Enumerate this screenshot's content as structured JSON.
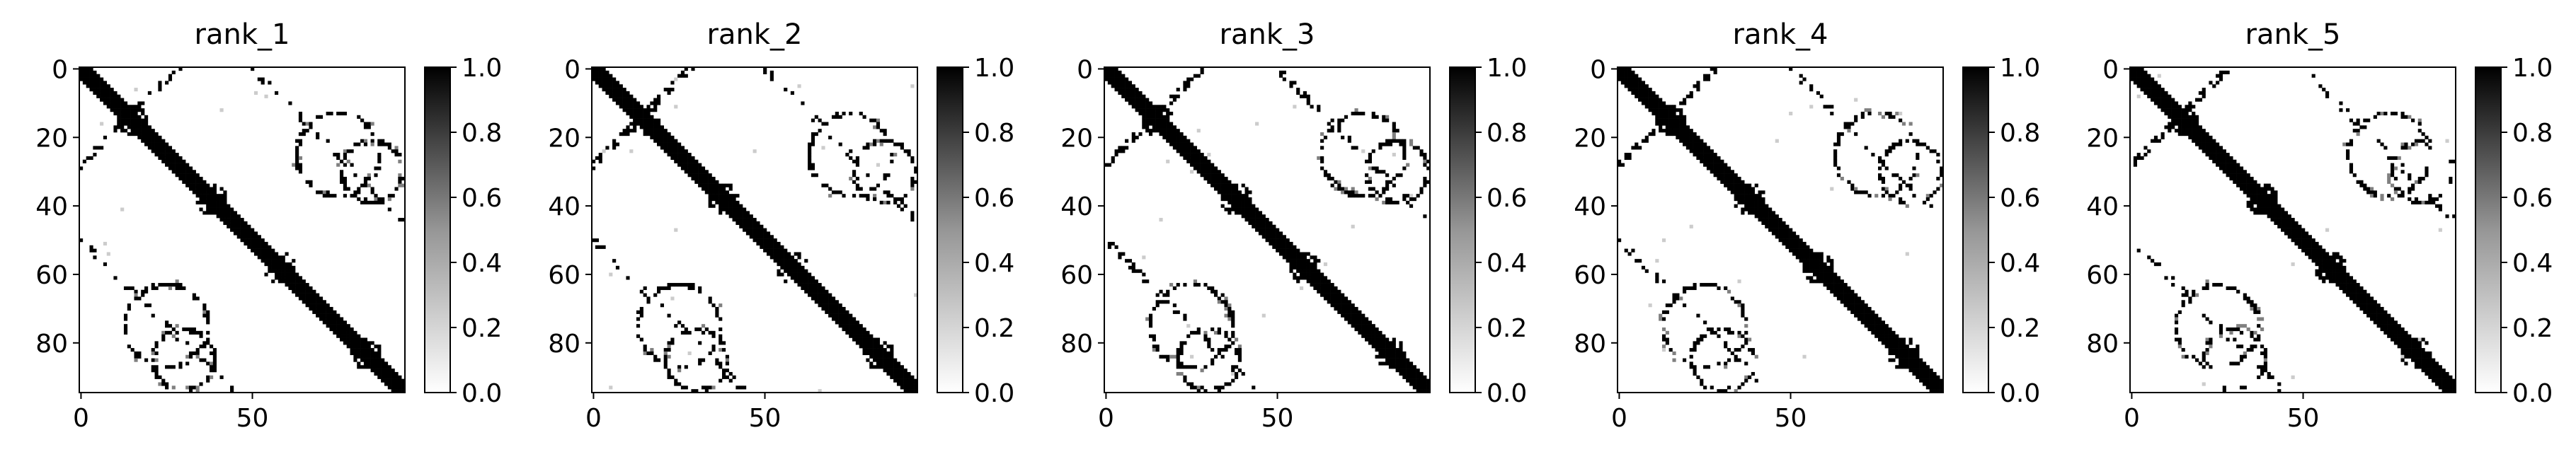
{
  "chart_data": [
    {
      "type": "heatmap",
      "title": "rank_1",
      "xlabel": "",
      "ylabel": "",
      "size": 95,
      "xticks": [
        0,
        50
      ],
      "yticks": [
        0,
        20,
        40,
        60,
        80
      ],
      "colorbar": {
        "ticks": [
          "0.0",
          "0.2",
          "0.4",
          "0.6",
          "0.8",
          "1.0"
        ],
        "range": [
          0,
          1
        ],
        "cmap": "Greys"
      },
      "pattern": {
        "diagonal_width": 3,
        "ring_centers": [
          [
            15,
            15
          ],
          [
            38,
            38
          ],
          [
            58,
            58
          ],
          [
            83,
            83
          ]
        ],
        "loops": [
          [
            25,
            75,
            12
          ],
          [
            80,
            30,
            12
          ],
          [
            65,
            18,
            10
          ],
          [
            30,
            85,
            9
          ]
        ],
        "offdiag_stripes": [
          [
            0,
            28
          ],
          [
            28,
            0
          ]
        ]
      }
    },
    {
      "type": "heatmap",
      "title": "rank_2",
      "xlabel": "",
      "ylabel": "",
      "size": 95,
      "xticks": [
        0,
        50
      ],
      "yticks": [
        0,
        20,
        40,
        60,
        80
      ],
      "colorbar": {
        "ticks": [
          "0.0",
          "0.2",
          "0.4",
          "0.6",
          "0.8",
          "1.0"
        ],
        "range": [
          0,
          1
        ],
        "cmap": "Greys"
      },
      "pattern": {
        "diagonal_width": 3,
        "ring_centers": [
          [
            15,
            15
          ],
          [
            38,
            38
          ],
          [
            58,
            58
          ],
          [
            83,
            83
          ]
        ],
        "loops": [
          [
            25,
            75,
            12
          ],
          [
            80,
            30,
            12
          ],
          [
            65,
            18,
            10
          ],
          [
            30,
            85,
            9
          ]
        ],
        "offdiag_stripes": [
          [
            0,
            28
          ],
          [
            28,
            0
          ]
        ]
      }
    },
    {
      "type": "heatmap",
      "title": "rank_3",
      "xlabel": "",
      "ylabel": "",
      "size": 95,
      "xticks": [
        0,
        50
      ],
      "yticks": [
        0,
        20,
        40,
        60,
        80
      ],
      "colorbar": {
        "ticks": [
          "0.0",
          "0.2",
          "0.4",
          "0.6",
          "0.8",
          "1.0"
        ],
        "range": [
          0,
          1
        ],
        "cmap": "Greys"
      },
      "pattern": {
        "diagonal_width": 3,
        "ring_centers": [
          [
            15,
            15
          ],
          [
            38,
            38
          ],
          [
            58,
            58
          ],
          [
            83,
            83
          ]
        ],
        "loops": [
          [
            25,
            75,
            12
          ],
          [
            80,
            30,
            12
          ],
          [
            65,
            18,
            10
          ],
          [
            30,
            85,
            9
          ]
        ],
        "offdiag_stripes": [
          [
            0,
            28
          ],
          [
            28,
            0
          ]
        ]
      }
    },
    {
      "type": "heatmap",
      "title": "rank_4",
      "xlabel": "",
      "ylabel": "",
      "size": 95,
      "xticks": [
        0,
        50
      ],
      "yticks": [
        0,
        20,
        40,
        60,
        80
      ],
      "colorbar": {
        "ticks": [
          "0.0",
          "0.2",
          "0.4",
          "0.6",
          "0.8",
          "1.0"
        ],
        "range": [
          0,
          1
        ],
        "cmap": "Greys"
      },
      "pattern": {
        "diagonal_width": 3,
        "ring_centers": [
          [
            15,
            15
          ],
          [
            38,
            38
          ],
          [
            58,
            58
          ],
          [
            83,
            83
          ]
        ],
        "loops": [
          [
            25,
            75,
            12
          ],
          [
            80,
            30,
            12
          ],
          [
            65,
            18,
            10
          ],
          [
            30,
            85,
            9
          ]
        ],
        "offdiag_stripes": [
          [
            0,
            28
          ],
          [
            28,
            0
          ]
        ]
      }
    },
    {
      "type": "heatmap",
      "title": "rank_5",
      "xlabel": "",
      "ylabel": "",
      "size": 95,
      "xticks": [
        0,
        50
      ],
      "yticks": [
        0,
        20,
        40,
        60,
        80
      ],
      "colorbar": {
        "ticks": [
          "0.0",
          "0.2",
          "0.4",
          "0.6",
          "0.8",
          "1.0"
        ],
        "range": [
          0,
          1
        ],
        "cmap": "Greys"
      },
      "pattern": {
        "diagonal_width": 3,
        "ring_centers": [
          [
            15,
            15
          ],
          [
            38,
            38
          ],
          [
            58,
            58
          ],
          [
            83,
            83
          ]
        ],
        "loops": [
          [
            25,
            75,
            12
          ],
          [
            80,
            30,
            12
          ],
          [
            65,
            18,
            10
          ],
          [
            30,
            85,
            9
          ]
        ],
        "offdiag_stripes": [
          [
            0,
            28
          ],
          [
            28,
            0
          ]
        ]
      }
    }
  ]
}
